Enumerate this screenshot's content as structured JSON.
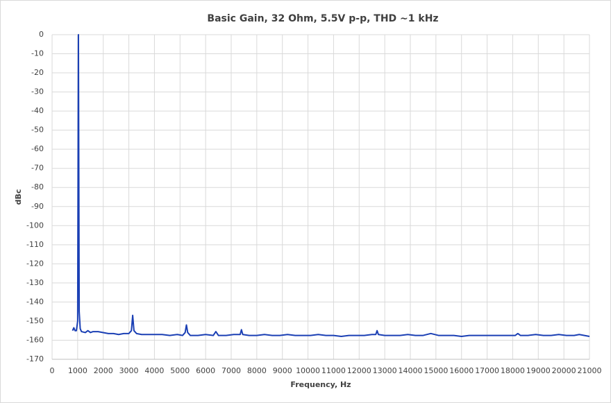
{
  "chart_data": {
    "type": "line",
    "title": "Basic Gain, 32 Ohm, 5.5V p-p, THD ~1 kHz",
    "x_label": "Frequency, Hz",
    "y_label": "dBc",
    "xlim": [
      0,
      21000
    ],
    "ylim": [
      -170,
      0
    ],
    "xticks": [
      0,
      1000,
      2000,
      3000,
      4000,
      5000,
      6000,
      7000,
      8000,
      9000,
      10000,
      11000,
      12000,
      13000,
      14000,
      15000,
      16000,
      17000,
      18000,
      19000,
      20000,
      21000
    ],
    "yticks": [
      0,
      -10,
      -20,
      -30,
      -40,
      -50,
      -60,
      -70,
      -80,
      -90,
      -100,
      -110,
      -120,
      -130,
      -140,
      -150,
      -160,
      -170
    ],
    "grid": true,
    "x": [
      800,
      850,
      900,
      950,
      1000,
      1030,
      1060,
      1100,
      1150,
      1300,
      1400,
      1500,
      1600,
      1800,
      2000,
      2200,
      2400,
      2600,
      2800,
      3000,
      3100,
      3150,
      3200,
      3300,
      3500,
      3700,
      4000,
      4300,
      4600,
      4900,
      5100,
      5200,
      5250,
      5300,
      5400,
      5700,
      6000,
      6300,
      6400,
      6500,
      6800,
      7100,
      7350,
      7400,
      7450,
      7700,
      8000,
      8300,
      8600,
      8900,
      9200,
      9500,
      9800,
      10100,
      10400,
      10700,
      11000,
      11300,
      11600,
      11900,
      12200,
      12500,
      12650,
      12700,
      12750,
      13000,
      13300,
      13600,
      13900,
      14200,
      14500,
      14800,
      15100,
      15400,
      15700,
      16000,
      16300,
      16600,
      16900,
      17200,
      17500,
      17800,
      18100,
      18200,
      18300,
      18600,
      18900,
      19200,
      19500,
      19800,
      20100,
      20400,
      20600,
      20800,
      21000
    ],
    "series": [
      {
        "name": "dBc",
        "color": "#1a3fb4",
        "values": [
          -155,
          -153.5,
          -155,
          -155,
          -150,
          0,
          -145,
          -154,
          -155.5,
          -156,
          -155,
          -156,
          -155.5,
          -155.5,
          -156,
          -156.5,
          -156.5,
          -157,
          -156.5,
          -156.5,
          -155,
          -147,
          -155,
          -156.5,
          -157,
          -157,
          -157,
          -157,
          -157.5,
          -157,
          -157.5,
          -156,
          -152,
          -156,
          -157.5,
          -157.5,
          -157,
          -157.5,
          -155.5,
          -157.5,
          -157.5,
          -157,
          -157,
          -154.5,
          -157,
          -157.5,
          -157.5,
          -157,
          -157.5,
          -157.5,
          -157,
          -157.5,
          -157.5,
          -157.5,
          -157,
          -157.5,
          -157.5,
          -158,
          -157.5,
          -157.5,
          -157.5,
          -157,
          -157,
          -155,
          -157,
          -157.5,
          -157.5,
          -157.5,
          -157,
          -157.5,
          -157.5,
          -156.5,
          -157.5,
          -157.5,
          -157.5,
          -158,
          -157.5,
          -157.5,
          -157.5,
          -157.5,
          -157.5,
          -157.5,
          -157.5,
          -156.5,
          -157.5,
          -157.5,
          -157,
          -157.5,
          -157.5,
          -157,
          -157.5,
          -157.5,
          -157,
          -157.5,
          -158
        ]
      }
    ]
  }
}
